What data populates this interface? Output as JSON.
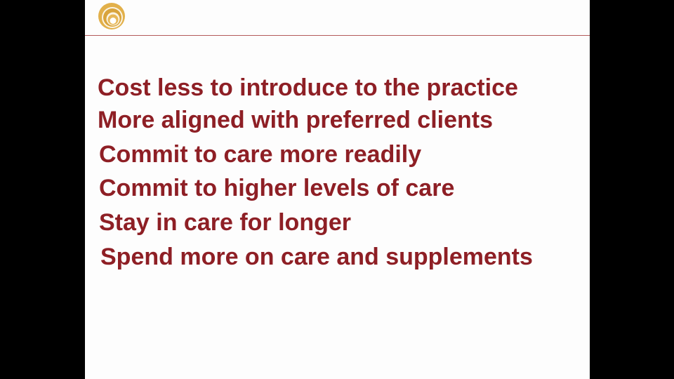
{
  "theme": {
    "text_color": "#8e1f25",
    "rule_color": "#b45a5a",
    "background": "#fdfdfd",
    "letterbox": "#000000"
  },
  "header": {
    "logo_icon": "concentric-rings-logo-icon"
  },
  "bullets": [
    "Cost less to introduce to the practice",
    "More aligned with preferred clients",
    "Commit to care more readily",
    "Commit to higher levels of care",
    "Stay in care for longer",
    "Spend more on care and supplements"
  ]
}
